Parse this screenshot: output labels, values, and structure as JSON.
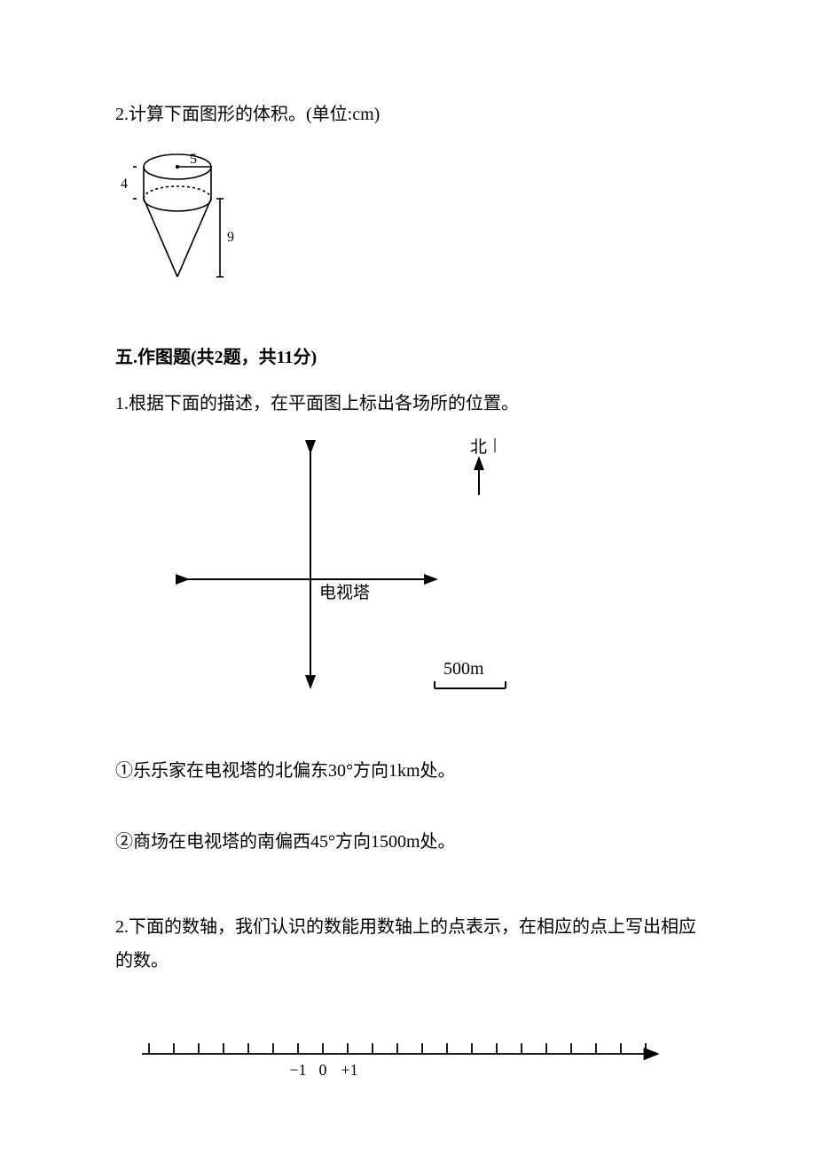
{
  "q2": {
    "text": "2.计算下面图形的体积。(单位:cm)",
    "figure": {
      "type": "diagram",
      "radius_label": "5",
      "cyl_height_label": "4",
      "cone_height_label": "9",
      "stroke": "#000000",
      "stroke_width": 1.6,
      "font_family": "Times New Roman, serif",
      "font_size": 16
    }
  },
  "section5": {
    "heading": "五.作图题(共2题，共11分)"
  },
  "q5_1": {
    "text": "1.根据下面的描述，在平面图上标出各场所的位置。",
    "figure": {
      "type": "diagram",
      "north_label": "北",
      "center_label": "电视塔",
      "scale_label": "500m",
      "stroke": "#000000",
      "stroke_width": 2
    },
    "sub1": "①乐乐家在电视塔的北偏东30°方向1km处。",
    "sub2": "②商场在电视塔的南偏西45°方向1500m处。"
  },
  "q5_2": {
    "text": "2.下面的数轴，我们认识的数能用数轴上的点表示，在相应的点上写出相应的数。",
    "figure": {
      "type": "diagram",
      "labels": {
        "neg1": "−1",
        "zero": "0",
        "pos1": "+1"
      },
      "tick_count": 21,
      "stroke": "#000000",
      "stroke_width": 1.8,
      "font_family": "Times New Roman, serif",
      "font_size": 20
    }
  }
}
